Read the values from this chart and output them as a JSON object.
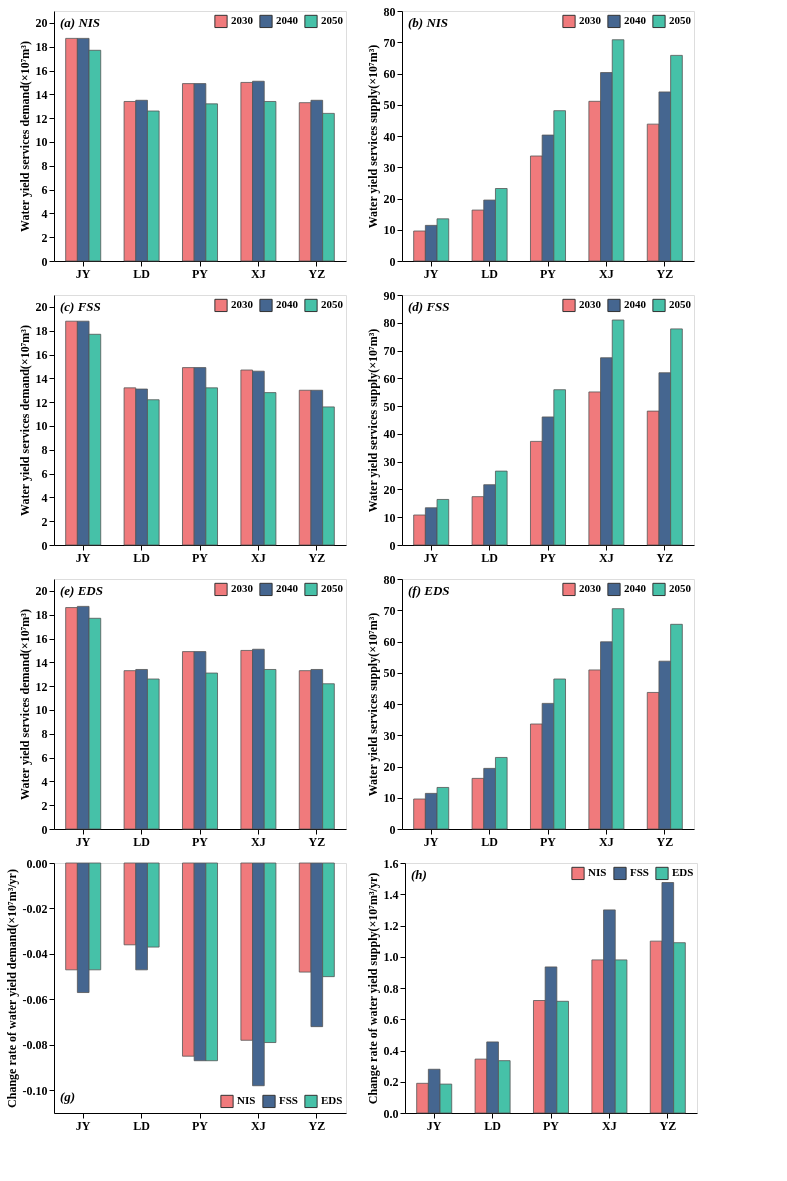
{
  "chart_data": [
    {
      "type": "bar",
      "title": "(a)  NIS",
      "ylabel": "Water yield services demand(×10⁷m³)",
      "categories": [
        "JY",
        "LD",
        "PY",
        "XJ",
        "YZ"
      ],
      "ylim": [
        0,
        21
      ],
      "yticks": [
        0,
        2,
        4,
        6,
        8,
        10,
        12,
        14,
        16,
        18,
        20
      ],
      "legend": "top right",
      "grid": false,
      "series": [
        {
          "name": "2030",
          "color": "#f07a7c",
          "values": [
            18.7,
            13.4,
            14.9,
            15.0,
            13.3
          ]
        },
        {
          "name": "2040",
          "color": "#456690",
          "values": [
            18.7,
            13.5,
            14.9,
            15.1,
            13.5
          ]
        },
        {
          "name": "2050",
          "color": "#46c1a8",
          "values": [
            17.7,
            12.6,
            13.2,
            13.4,
            12.4
          ]
        }
      ]
    },
    {
      "type": "bar",
      "title": "(b) NIS",
      "ylabel": "Water yield services supply(×10⁷m³)",
      "categories": [
        "JY",
        "LD",
        "PY",
        "XJ",
        "YZ"
      ],
      "ylim": [
        0,
        80
      ],
      "yticks": [
        0,
        10,
        20,
        30,
        40,
        50,
        60,
        70,
        80
      ],
      "legend": "top right",
      "grid": false,
      "series": [
        {
          "name": "2030",
          "color": "#f07a7c",
          "values": [
            9.6,
            16.3,
            33.6,
            51.1,
            43.8
          ]
        },
        {
          "name": "2040",
          "color": "#456690",
          "values": [
            11.4,
            19.5,
            40.3,
            60.3,
            54.1
          ]
        },
        {
          "name": "2050",
          "color": "#46c1a8",
          "values": [
            13.5,
            23.2,
            48.1,
            70.8,
            65.8
          ]
        }
      ]
    },
    {
      "type": "bar",
      "title": "(c)  FSS",
      "ylabel": "Water yield services demand(×10⁷m³)",
      "categories": [
        "JY",
        "LD",
        "PY",
        "XJ",
        "YZ"
      ],
      "ylim": [
        0,
        21
      ],
      "yticks": [
        0,
        2,
        4,
        6,
        8,
        10,
        12,
        14,
        16,
        18,
        20
      ],
      "legend": "top right",
      "grid": false,
      "series": [
        {
          "name": "2030",
          "color": "#f07a7c",
          "values": [
            18.8,
            13.2,
            14.9,
            14.7,
            13.0
          ]
        },
        {
          "name": "2040",
          "color": "#456690",
          "values": [
            18.8,
            13.1,
            14.9,
            14.6,
            13.0
          ]
        },
        {
          "name": "2050",
          "color": "#46c1a8",
          "values": [
            17.7,
            12.2,
            13.2,
            12.8,
            11.6
          ]
        }
      ]
    },
    {
      "type": "bar",
      "title": "(d)  FSS",
      "ylabel": "Water yield services supply(×10⁷m³)",
      "categories": [
        "JY",
        "LD",
        "PY",
        "XJ",
        "YZ"
      ],
      "ylim": [
        0,
        90
      ],
      "yticks": [
        0,
        10,
        20,
        30,
        40,
        50,
        60,
        70,
        80,
        90
      ],
      "legend": "top right",
      "grid": false,
      "series": [
        {
          "name": "2030",
          "color": "#f07a7c",
          "values": [
            10.8,
            17.4,
            37.3,
            55.1,
            48.2
          ]
        },
        {
          "name": "2040",
          "color": "#456690",
          "values": [
            13.4,
            21.7,
            46.1,
            67.4,
            62.0
          ]
        },
        {
          "name": "2050",
          "color": "#46c1a8",
          "values": [
            16.4,
            26.6,
            55.9,
            81.0,
            77.8
          ]
        }
      ]
    },
    {
      "type": "bar",
      "title": "(e)  EDS",
      "ylabel": "Water yield services demand(×10⁷m³)",
      "categories": [
        "JY",
        "LD",
        "PY",
        "XJ",
        "YZ"
      ],
      "ylim": [
        0,
        21
      ],
      "yticks": [
        0,
        2,
        4,
        6,
        8,
        10,
        12,
        14,
        16,
        18,
        20
      ],
      "legend": "top right",
      "grid": false,
      "series": [
        {
          "name": "2030",
          "color": "#f07a7c",
          "values": [
            18.6,
            13.3,
            14.9,
            15.0,
            13.3
          ]
        },
        {
          "name": "2040",
          "color": "#456690",
          "values": [
            18.7,
            13.4,
            14.9,
            15.1,
            13.4
          ]
        },
        {
          "name": "2050",
          "color": "#46c1a8",
          "values": [
            17.7,
            12.6,
            13.1,
            13.4,
            12.2
          ]
        }
      ]
    },
    {
      "type": "bar",
      "title": "(f)  EDS",
      "ylabel": "Water yield services supply(×10⁷m³)",
      "categories": [
        "JY",
        "LD",
        "PY",
        "XJ",
        "YZ"
      ],
      "ylim": [
        0,
        80
      ],
      "yticks": [
        0,
        10,
        20,
        30,
        40,
        50,
        60,
        70,
        80
      ],
      "legend": "top right",
      "grid": false,
      "series": [
        {
          "name": "2030",
          "color": "#f07a7c",
          "values": [
            9.6,
            16.2,
            33.6,
            50.9,
            43.7
          ]
        },
        {
          "name": "2040",
          "color": "#456690",
          "values": [
            11.4,
            19.4,
            40.2,
            59.9,
            53.7
          ]
        },
        {
          "name": "2050",
          "color": "#46c1a8",
          "values": [
            13.3,
            22.9,
            48.0,
            70.5,
            65.5
          ]
        }
      ]
    },
    {
      "type": "bar",
      "title": "(g)",
      "ylabel": "Change rate of water yield demand(×10⁷m³/yr)",
      "categories": [
        "JY",
        "LD",
        "PY",
        "XJ",
        "YZ"
      ],
      "ylim": [
        -0.11,
        0
      ],
      "yticks": [
        {
          "value": -0.1,
          "label": "-0.10"
        },
        {
          "value": -0.08,
          "label": "-0.08"
        },
        {
          "value": -0.06,
          "label": "-0.06"
        },
        {
          "value": -0.04,
          "label": "-0.04"
        },
        {
          "value": -0.02,
          "label": "-0.02"
        },
        {
          "value": 0,
          "label": "0.00"
        }
      ],
      "legend": "bottom right",
      "grid": false,
      "series": [
        {
          "name": "NIS",
          "color": "#f07a7c",
          "values": [
            -0.047,
            -0.036,
            -0.085,
            -0.078,
            -0.048
          ]
        },
        {
          "name": "FSS",
          "color": "#456690",
          "values": [
            -0.057,
            -0.047,
            -0.087,
            -0.098,
            -0.072
          ]
        },
        {
          "name": "EDS",
          "color": "#46c1a8",
          "values": [
            -0.047,
            -0.037,
            -0.087,
            -0.079,
            -0.05
          ]
        }
      ]
    },
    {
      "type": "bar",
      "title": "(h)",
      "ylabel": "Change rate of water yield supply(×10⁷m³/yr)",
      "categories": [
        "JY",
        "LD",
        "PY",
        "XJ",
        "YZ"
      ],
      "ylim": [
        0,
        1.6
      ],
      "yticks": [
        {
          "value": 0,
          "label": "0.0"
        },
        0.2,
        0.4,
        0.6,
        0.8,
        {
          "value": 1,
          "label": "1.0"
        },
        1.2,
        1.4,
        1.6
      ],
      "legend": "top right",
      "grid": false,
      "series": [
        {
          "name": "NIS",
          "color": "#f07a7c",
          "values": [
            0.19,
            0.345,
            0.72,
            0.98,
            1.1
          ]
        },
        {
          "name": "FSS",
          "color": "#456690",
          "values": [
            0.28,
            0.455,
            0.935,
            1.3,
            1.475
          ]
        },
        {
          "name": "EDS",
          "color": "#46c1a8",
          "values": [
            0.185,
            0.335,
            0.715,
            0.98,
            1.09
          ]
        }
      ]
    }
  ]
}
